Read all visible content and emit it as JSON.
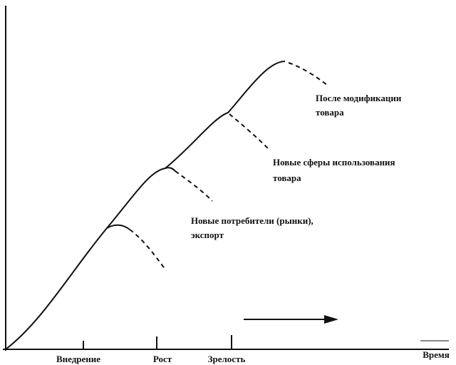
{
  "stages": [
    {
      "label": "Внедрение"
    },
    {
      "label": "Рост"
    },
    {
      "label": "Зрелость"
    }
  ],
  "axis_label": "Время",
  "annotations": [
    {
      "lines": [
        "После модификации",
        "товара"
      ]
    },
    {
      "lines": [
        "Новые сферы использования",
        "товара"
      ]
    },
    {
      "lines": [
        "Новые потребители (рынки),",
        "экспорт"
      ]
    }
  ]
}
